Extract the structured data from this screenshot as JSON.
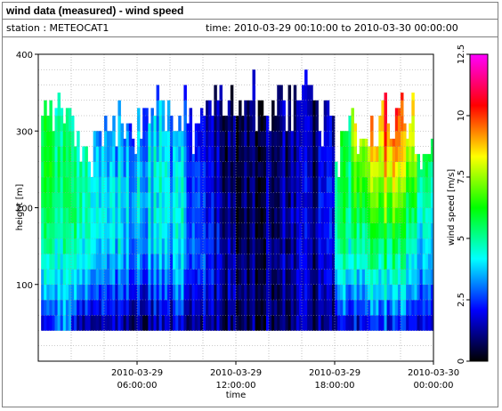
{
  "header": {
    "title": "wind data (measured) - wind speed",
    "station": "station : METEOCAT1",
    "time_range": "time: 2010-03-29 00:10:00 to 2010-03-30 00:00:00"
  },
  "chart_data": {
    "type": "heatmap",
    "title": "wind data (measured) - wind speed",
    "xlabel": "time",
    "ylabel": "height [m]",
    "colorbar_label": "wind speed [m/s]",
    "x_unit": "hours since 2010-03-29 00:00:00",
    "xlim": [
      0,
      24
    ],
    "ylim": [
      0,
      400
    ],
    "x_ticks": [
      {
        "value": 6,
        "line1": "2010-03-29",
        "line2": "06:00:00"
      },
      {
        "value": 12,
        "line1": "2010-03-29",
        "line2": "12:00:00"
      },
      {
        "value": 18,
        "line1": "2010-03-29",
        "line2": "18:00:00"
      },
      {
        "value": 24,
        "line1": "2010-03-30",
        "line2": "00:00:00"
      }
    ],
    "y_ticks": [
      100,
      200,
      300,
      400
    ],
    "y_minor_gridlines": [
      20,
      40,
      60,
      80,
      100,
      120,
      140,
      160,
      180,
      200,
      220,
      240,
      260,
      280,
      300,
      320,
      340,
      360,
      380
    ],
    "colorbar": {
      "min": 0,
      "max": 12.5,
      "ticks": [
        0,
        2.5,
        5,
        7.5,
        10,
        12.5
      ],
      "tick_labels": [
        "0",
        "2.5",
        "5",
        "7.5",
        "10",
        "12.5"
      ],
      "colors": [
        "#000000",
        "#0000ff",
        "#00ffff",
        "#00ff00",
        "#ffff00",
        "#ff0000",
        "#ff00ff"
      ]
    },
    "grid": true,
    "height_bins_m": [
      40,
      60,
      80,
      100,
      120,
      140,
      160,
      180,
      200,
      220,
      240,
      260,
      280,
      300,
      320,
      340,
      360
    ],
    "profile_step_hours": 0.1667,
    "segments": [
      {
        "t_start": 0.17,
        "t_end": 1.0,
        "top_m": 340,
        "speeds": [
          2.5,
          3.2,
          3.8,
          4.4,
          4.8,
          5.2,
          5.5,
          5.8,
          6.0,
          6.2,
          6.3,
          6.3,
          6.2,
          6.0,
          5.8,
          5.5,
          5.2
        ]
      },
      {
        "t_start": 1.0,
        "t_end": 2.0,
        "top_m": 350,
        "speeds": [
          3.0,
          3.3,
          3.6,
          4.0,
          4.3,
          4.6,
          4.9,
          5.1,
          5.2,
          5.3,
          5.3,
          5.2,
          5.1,
          5.0,
          4.8,
          4.6,
          4.5
        ]
      },
      {
        "t_start": 2.0,
        "t_end": 3.0,
        "top_m": 320,
        "speeds": [
          1.8,
          2.6,
          3.2,
          3.8,
          4.2,
          4.5,
          4.8,
          5.0,
          5.1,
          5.1,
          5.0,
          4.9,
          4.7,
          4.5,
          4.2,
          4.0,
          3.8
        ]
      },
      {
        "t_start": 3.0,
        "t_end": 4.0,
        "top_m": 300,
        "speeds": [
          1.6,
          2.4,
          3.0,
          3.5,
          4.0,
          4.3,
          4.5,
          4.6,
          4.6,
          4.5,
          4.3,
          4.1,
          3.9,
          3.7,
          3.5,
          3.3,
          3.2
        ]
      },
      {
        "t_start": 4.0,
        "t_end": 5.0,
        "top_m": 320,
        "speeds": [
          1.5,
          2.2,
          2.8,
          3.2,
          3.6,
          3.9,
          4.1,
          4.2,
          4.2,
          4.1,
          3.9,
          3.7,
          3.5,
          3.3,
          3.1,
          3.0,
          2.9
        ]
      },
      {
        "t_start": 5.0,
        "t_end": 6.0,
        "top_m": 330,
        "speeds": [
          1.4,
          2.0,
          2.6,
          3.0,
          3.3,
          3.6,
          3.7,
          3.8,
          3.8,
          3.7,
          3.6,
          3.4,
          3.2,
          3.0,
          2.8,
          2.7,
          2.6
        ]
      },
      {
        "t_start": 6.0,
        "t_end": 7.0,
        "top_m": 350,
        "speeds": [
          1.3,
          1.9,
          2.4,
          2.9,
          3.2,
          3.5,
          3.7,
          3.9,
          4.0,
          4.0,
          3.9,
          3.8,
          3.6,
          3.4,
          3.2,
          3.0,
          2.9
        ]
      },
      {
        "t_start": 7.0,
        "t_end": 8.0,
        "top_m": 360,
        "speeds": [
          1.4,
          2.0,
          2.6,
          3.0,
          3.4,
          3.7,
          3.9,
          4.1,
          4.2,
          4.2,
          4.1,
          4.0,
          3.8,
          3.6,
          3.4,
          3.2,
          3.1
        ]
      },
      {
        "t_start": 8.0,
        "t_end": 9.0,
        "top_m": 340,
        "speeds": [
          1.5,
          2.1,
          2.7,
          3.1,
          3.4,
          3.6,
          3.8,
          3.9,
          3.9,
          3.8,
          3.7,
          3.5,
          3.3,
          3.1,
          2.9,
          2.8,
          2.7
        ]
      },
      {
        "t_start": 9.0,
        "t_end": 10.0,
        "top_m": 330,
        "speeds": [
          1.3,
          1.8,
          2.3,
          2.6,
          2.8,
          3.0,
          3.1,
          3.1,
          3.0,
          2.9,
          2.8,
          2.6,
          2.4,
          2.3,
          2.2,
          2.1,
          2.0
        ]
      },
      {
        "t_start": 10.0,
        "t_end": 11.0,
        "top_m": 360,
        "speeds": [
          1.2,
          1.5,
          1.8,
          2.0,
          2.1,
          2.1,
          2.0,
          1.9,
          1.8,
          1.7,
          1.6,
          1.5,
          1.4,
          1.4,
          1.3,
          1.3,
          1.2
        ]
      },
      {
        "t_start": 11.0,
        "t_end": 12.0,
        "top_m": 360,
        "speeds": [
          1.1,
          1.3,
          1.4,
          1.5,
          1.5,
          1.4,
          1.3,
          1.2,
          1.2,
          1.1,
          1.1,
          1.0,
          1.0,
          1.0,
          1.0,
          1.0,
          1.0
        ]
      },
      {
        "t_start": 12.0,
        "t_end": 13.0,
        "top_m": 360,
        "speeds": [
          1.0,
          1.1,
          1.1,
          1.1,
          1.1,
          1.0,
          1.0,
          0.9,
          0.9,
          0.9,
          0.9,
          0.9,
          0.9,
          0.9,
          0.9,
          0.9,
          0.9
        ]
      },
      {
        "t_start": 13.0,
        "t_end": 14.0,
        "top_m": 360,
        "speeds": [
          1.0,
          1.0,
          1.1,
          1.1,
          1.1,
          1.1,
          1.0,
          1.0,
          1.0,
          1.0,
          1.0,
          1.0,
          1.0,
          1.0,
          1.0,
          1.0,
          1.0
        ]
      },
      {
        "t_start": 14.0,
        "t_end": 15.0,
        "top_m": 360,
        "speeds": [
          1.0,
          1.1,
          1.1,
          1.2,
          1.2,
          1.2,
          1.2,
          1.1,
          1.1,
          1.1,
          1.1,
          1.1,
          1.1,
          1.1,
          1.1,
          1.1,
          1.1
        ]
      },
      {
        "t_start": 15.0,
        "t_end": 16.0,
        "top_m": 360,
        "speeds": [
          1.0,
          1.1,
          1.2,
          1.2,
          1.3,
          1.3,
          1.3,
          1.3,
          1.2,
          1.2,
          1.2,
          1.2,
          1.2,
          1.2,
          1.2,
          1.2,
          1.2
        ]
      },
      {
        "t_start": 16.0,
        "t_end": 17.0,
        "top_m": 360,
        "speeds": [
          1.1,
          1.2,
          1.3,
          1.4,
          1.4,
          1.4,
          1.4,
          1.4,
          1.3,
          1.3,
          1.3,
          1.3,
          1.3,
          1.3,
          1.3,
          1.3,
          1.3
        ]
      },
      {
        "t_start": 17.0,
        "t_end": 18.0,
        "top_m": 340,
        "speeds": [
          1.2,
          1.4,
          1.6,
          1.8,
          2.0,
          2.1,
          2.2,
          2.2,
          2.2,
          2.1,
          2.0,
          1.9,
          1.8,
          1.7,
          1.6,
          1.5,
          1.5
        ]
      },
      {
        "t_start": 18.0,
        "t_end": 19.0,
        "top_m": 300,
        "speeds": [
          1.8,
          2.5,
          3.2,
          3.8,
          4.3,
          4.7,
          5.0,
          5.2,
          5.4,
          5.5,
          5.5,
          5.5,
          5.4,
          5.3,
          5.2,
          5.1,
          5.0
        ]
      },
      {
        "t_start": 19.0,
        "t_end": 20.0,
        "top_m": 310,
        "speeds": [
          2.2,
          3.0,
          3.7,
          4.3,
          4.8,
          5.2,
          5.6,
          6.0,
          6.4,
          6.8,
          7.2,
          7.6,
          7.8,
          8.0,
          8.2,
          8.3,
          8.4
        ]
      },
      {
        "t_start": 20.0,
        "t_end": 21.0,
        "top_m": 320,
        "speeds": [
          2.4,
          3.2,
          3.9,
          4.5,
          5.0,
          5.5,
          5.9,
          6.4,
          6.9,
          7.4,
          7.9,
          8.4,
          8.8,
          9.2,
          9.5,
          9.7,
          9.8
        ]
      },
      {
        "t_start": 21.0,
        "t_end": 22.0,
        "top_m": 330,
        "speeds": [
          2.5,
          3.3,
          4.0,
          4.6,
          5.1,
          5.6,
          6.1,
          6.7,
          7.3,
          7.9,
          8.5,
          9.0,
          9.5,
          9.9,
          10.2,
          10.4,
          10.5
        ]
      },
      {
        "t_start": 22.0,
        "t_end": 23.0,
        "top_m": 330,
        "speeds": [
          2.4,
          3.1,
          3.7,
          4.2,
          4.6,
          5.0,
          5.4,
          5.9,
          6.4,
          6.9,
          7.4,
          7.9,
          8.3,
          8.7,
          9.0,
          9.2,
          9.3
        ]
      },
      {
        "t_start": 23.0,
        "t_end": 24.0,
        "top_m": 310,
        "speeds": [
          2.2,
          2.8,
          3.3,
          3.7,
          4.0,
          4.3,
          4.6,
          4.9,
          5.2,
          5.5,
          5.8,
          6.1,
          6.4,
          6.7,
          6.9,
          7.1,
          7.2
        ]
      }
    ]
  }
}
